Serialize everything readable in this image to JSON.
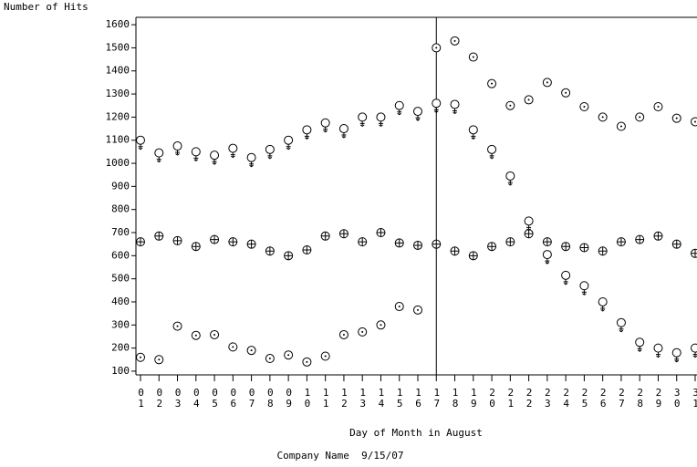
{
  "chart_data": {
    "type": "scatter",
    "y_label": "Number of Hits",
    "x_label": "Day of Month in August",
    "footnote": "Company Name  9/15/07",
    "categories": [
      "01",
      "02",
      "03",
      "04",
      "05",
      "06",
      "07",
      "08",
      "09",
      "10",
      "11",
      "12",
      "13",
      "14",
      "15",
      "16",
      "17",
      "18",
      "19",
      "20",
      "21",
      "22",
      "23",
      "24",
      "25",
      "26",
      "27",
      "28",
      "29",
      "30",
      "31"
    ],
    "reference_x": "17",
    "ylim": [
      84,
      1632
    ],
    "yticks": [
      100,
      200,
      300,
      400,
      500,
      600,
      700,
      800,
      900,
      1000,
      1100,
      1200,
      1300,
      1400,
      1500,
      1600
    ],
    "series": [
      {
        "color": "#000000",
        "marker": "dot",
        "values": [
          160,
          150,
          295,
          255,
          258,
          205,
          190,
          155,
          170,
          140,
          165,
          258,
          270,
          300,
          380,
          365,
          1500,
          1530,
          1460,
          1345,
          1250,
          1275,
          1350,
          1305,
          1245,
          1200,
          1160,
          1200,
          1245,
          1195,
          1180
        ]
      },
      {
        "color": "#000000",
        "marker": "plus",
        "values": [
          660,
          685,
          665,
          640,
          670,
          660,
          650,
          620,
          600,
          625,
          685,
          695,
          660,
          700,
          655,
          645,
          650,
          620,
          600,
          640,
          660,
          695,
          660,
          640,
          635,
          620,
          660,
          670,
          685,
          650,
          610
        ]
      },
      {
        "color": "#000000",
        "marker": "venus",
        "values": [
          1100,
          1045,
          1075,
          1050,
          1035,
          1065,
          1025,
          1060,
          1100,
          1145,
          1175,
          1150,
          1200,
          1200,
          1250,
          1225,
          1260,
          1255,
          1145,
          1060,
          945,
          750,
          605,
          515,
          470,
          400,
          310,
          225,
          200,
          180,
          200
        ]
      }
    ]
  }
}
